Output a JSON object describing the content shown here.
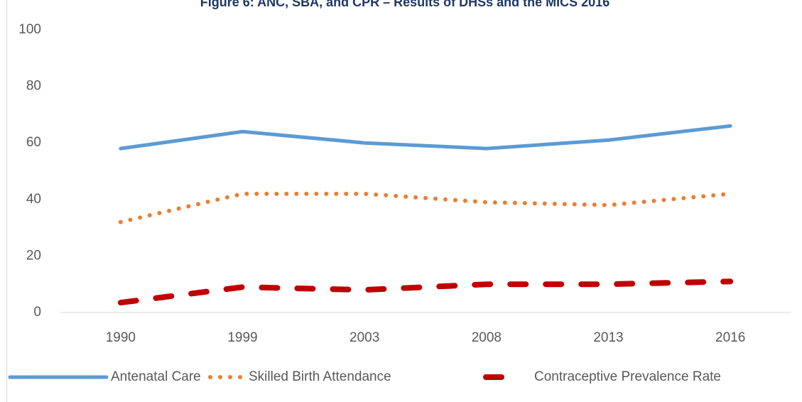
{
  "chart_data": {
    "type": "line",
    "title": "Figure 6: ANC, SBA, and CPR – Results of DHSs and the MICS 2016",
    "categories": [
      "1990",
      "1999",
      "2003",
      "2008",
      "2013",
      "2016"
    ],
    "series": [
      {
        "name": "Antenatal Care",
        "color": "#5b9bd5",
        "style": "solid",
        "values": [
          58,
          64,
          60,
          58,
          61,
          66
        ]
      },
      {
        "name": "Skilled Birth Attendance",
        "color": "#ed7d31",
        "style": "dotted",
        "values": [
          32,
          42,
          42,
          39,
          38,
          42
        ]
      },
      {
        "name": "Contraceptive Prevalence Rate",
        "color": "#c00000",
        "style": "dashed",
        "values": [
          3.5,
          9,
          8,
          10,
          10,
          11
        ]
      }
    ],
    "ylim": [
      0,
      100
    ],
    "yticks": [
      0,
      20,
      40,
      60,
      80,
      100
    ],
    "grid": false,
    "legend": "bottom"
  }
}
